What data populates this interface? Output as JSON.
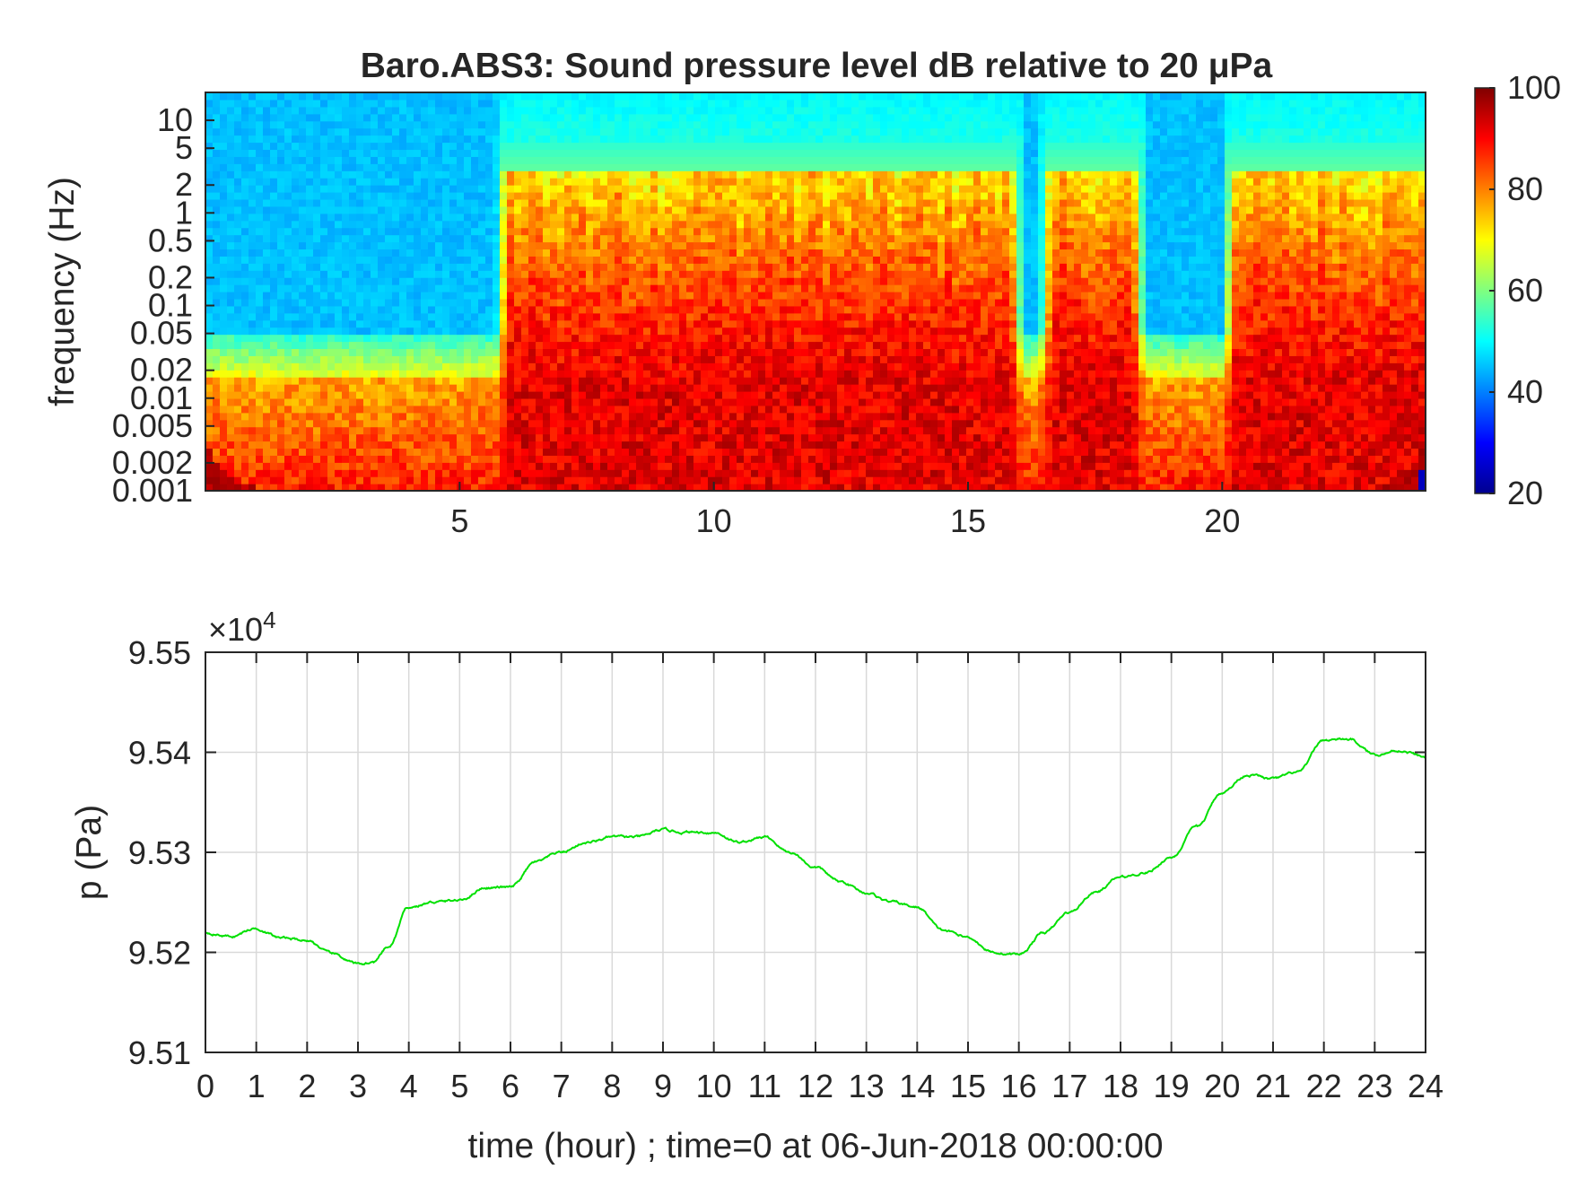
{
  "chart_data": [
    {
      "type": "heatmap",
      "title": "Baro.ABS3: Sound pressure level dB relative to 20 μPa",
      "ylabel": "frequency (Hz)",
      "xlabel": "",
      "yscale": "log",
      "xlim": [
        0,
        24
      ],
      "ylim": [
        0.001,
        20
      ],
      "xticks": [
        "5",
        "10",
        "15",
        "20"
      ],
      "yticks": [
        "10",
        "5",
        "2",
        "1",
        "0.5",
        "0.2",
        "0.1",
        "0.05",
        "0.02",
        "0.01",
        "0.005",
        "0.002",
        "0.001"
      ],
      "colormap": "jet",
      "colorbar": {
        "range": [
          20,
          100
        ],
        "ticks": [
          "100",
          "80",
          "60",
          "40",
          "20"
        ]
      },
      "quiet_periods_hours": [
        [
          0,
          5.7
        ],
        [
          16.1,
          16.4
        ],
        [
          18.5,
          20.0
        ]
      ],
      "notes": "levels high (80-100 dB) below ~0.02 Hz, ~50 dB above 5 Hz"
    },
    {
      "type": "line",
      "ylabel": "p (Pa)",
      "xlabel": "time (hour) ; time=0 at 06-Jun-2018 00:00:00",
      "yaxis_exponent": "×10",
      "yaxis_exponent_power": "4",
      "xlim": [
        0,
        24
      ],
      "ylim": [
        9.51,
        9.55
      ],
      "xticks": [
        "0",
        "1",
        "2",
        "3",
        "4",
        "5",
        "6",
        "7",
        "8",
        "9",
        "10",
        "11",
        "12",
        "13",
        "14",
        "15",
        "16",
        "17",
        "18",
        "19",
        "20",
        "21",
        "22",
        "23",
        "24"
      ],
      "yticks": [
        "9.55",
        "9.54",
        "9.53",
        "9.52",
        "9.51"
      ],
      "grid": true,
      "line_color": "#00e000",
      "series": [
        {
          "x": [
            0,
            0.5,
            1,
            1.5,
            2,
            2.5,
            3,
            3.3,
            3.6,
            4,
            4.5,
            5,
            5.5,
            6,
            6.5,
            7,
            7.5,
            8,
            8.5,
            9,
            9.5,
            10,
            10.5,
            11,
            11.5,
            12,
            12.5,
            13,
            13.5,
            14,
            14.5,
            15,
            15.5,
            16,
            16.5,
            17,
            17.5,
            18,
            18.5,
            19,
            19.5,
            20,
            20.5,
            21,
            21.5,
            22,
            22.5,
            23,
            23.5,
            24
          ],
          "y": [
            9.522,
            9.5216,
            9.5224,
            9.5214,
            9.5212,
            9.5198,
            9.5188,
            9.519,
            9.5205,
            9.5245,
            9.525,
            9.5252,
            9.5265,
            9.5265,
            9.529,
            9.53,
            9.531,
            9.5315,
            9.5315,
            9.5322,
            9.532,
            9.532,
            9.531,
            9.5315,
            9.53,
            9.5285,
            9.527,
            9.526,
            9.525,
            9.5245,
            9.5222,
            9.5215,
            9.52,
            9.5198,
            9.522,
            9.524,
            9.526,
            9.5275,
            9.528,
            9.5295,
            9.5325,
            9.536,
            9.5378,
            9.5373,
            9.538,
            9.5412,
            9.5413,
            9.5398,
            9.5402,
            9.5395
          ]
        }
      ]
    }
  ]
}
